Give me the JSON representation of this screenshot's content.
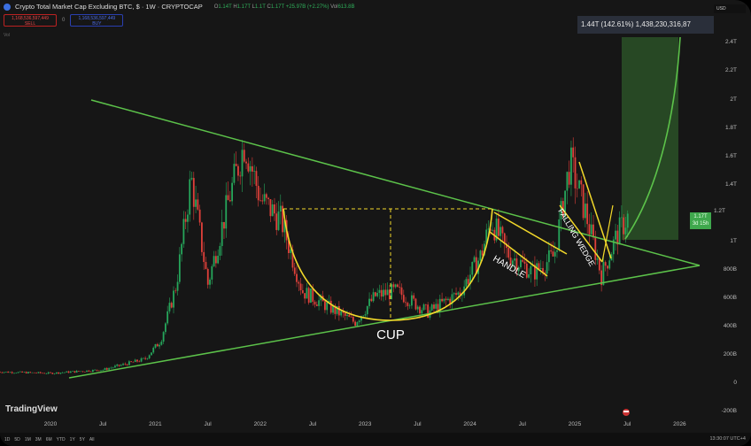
{
  "header": {
    "title": "Crypto Total Market Cap Excluding BTC, $ · 1W · CRYPTOCAP",
    "ohlc": {
      "o_label": "O",
      "o": "1.14T",
      "h_label": "H",
      "h": "1.17T",
      "l_label": "L",
      "l": "1.1T",
      "c_label": "C",
      "c": "1.17T",
      "change": "+25.97B (+2.27%)",
      "vol_label": "Vol",
      "vol": "613.8B"
    }
  },
  "trade": {
    "sell_price": "1,168,536,597,449",
    "sell_label": "SELL",
    "buy_price": "1,168,536,597,449",
    "buy_label": "BUY",
    "spread": "0"
  },
  "volume_label": "Vol",
  "currency": "USD",
  "measure_tooltip": "1.44T (142.61%) 1,438,230,316,87",
  "price_axis": [
    "2.4T",
    "2.2T",
    "2T",
    "1.8T",
    "1.6T",
    "1.4T",
    "1T",
    "800B",
    "600B",
    "400B",
    "200B",
    "0",
    "-200B"
  ],
  "price_label": {
    "value": "1.17T",
    "countdown": "3d 15h",
    "prev": "1.2T"
  },
  "time_axis": [
    "2020",
    "Jul",
    "2021",
    "Jul",
    "2022",
    "Jul",
    "2023",
    "Jul",
    "2024",
    "Jul",
    "2025",
    "Jul",
    "2026"
  ],
  "annotations": {
    "cup": "CUP",
    "handle": "HANDLE",
    "wedge": "FALLING WEDGE"
  },
  "brand": "TradingView",
  "ranges": [
    "1D",
    "5D",
    "1M",
    "3M",
    "6M",
    "YTD",
    "1Y",
    "5Y",
    "All"
  ],
  "clock": "13:30:07 UTC+4",
  "colors": {
    "up": "#26a65b",
    "down": "#e0403a",
    "trend": "#5cc24a",
    "pattern": "#f2d82a",
    "target": "#2e5a2a"
  },
  "price_path": [
    [
      2019.5,
      80
    ],
    [
      2020.0,
      70
    ],
    [
      2020.5,
      95
    ],
    [
      2020.9,
      170
    ],
    [
      2021.05,
      300
    ],
    [
      2021.2,
      700
    ],
    [
      2021.34,
      1450
    ],
    [
      2021.5,
      700
    ],
    [
      2021.7,
      1300
    ],
    [
      2021.85,
      1700
    ],
    [
      2022.0,
      1300
    ],
    [
      2022.2,
      1150
    ],
    [
      2022.4,
      650
    ],
    [
      2022.6,
      560
    ],
    [
      2022.9,
      430
    ],
    [
      2023.1,
      620
    ],
    [
      2023.3,
      650
    ],
    [
      2023.6,
      500
    ],
    [
      2023.9,
      640
    ],
    [
      2024.1,
      900
    ],
    [
      2024.2,
      1150
    ],
    [
      2024.35,
      920
    ],
    [
      2024.6,
      780
    ],
    [
      2024.8,
      900
    ],
    [
      2024.95,
      1560
    ],
    [
      2025.1,
      1200
    ],
    [
      2025.25,
      760
    ],
    [
      2025.4,
      1050
    ],
    [
      2025.5,
      1170
    ]
  ]
}
